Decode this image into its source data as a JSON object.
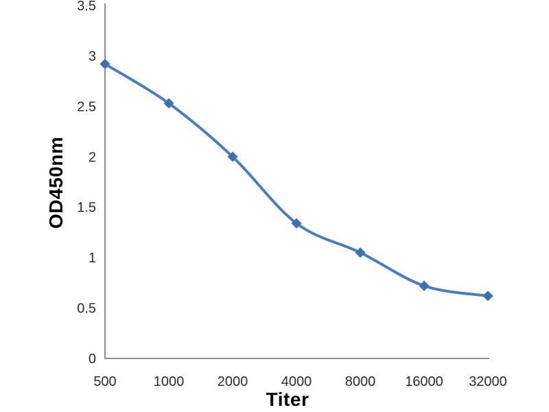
{
  "chart": {
    "background_color": "#ffffff",
    "line_color": "#4a7ebb",
    "marker_color": "#3f6fae",
    "axis_color": "#8e8e8e",
    "tick_label_color": "#2b2b2b",
    "axis_title_color": "#000000"
  },
  "chart_data": {
    "type": "line",
    "title": "",
    "xlabel": "Titer",
    "ylabel": "OD450nm",
    "categories": [
      "500",
      "1000",
      "2000",
      "4000",
      "8000",
      "16000",
      "32000"
    ],
    "series": [
      {
        "name": "OD450nm",
        "values": [
          2.92,
          2.53,
          2.0,
          1.34,
          1.05,
          0.72,
          0.62
        ]
      }
    ],
    "ylim": [
      0,
      3.5
    ],
    "ytick_labels": [
      "0",
      "0.5",
      "1",
      "1.5",
      "2",
      "2.5",
      "3",
      "3.5"
    ],
    "ytick_values": [
      0,
      0.5,
      1,
      1.5,
      2,
      2.5,
      3,
      3.5
    ],
    "grid": false,
    "legend_position": "none",
    "smooth_line": true,
    "marker_shape": "diamond"
  }
}
